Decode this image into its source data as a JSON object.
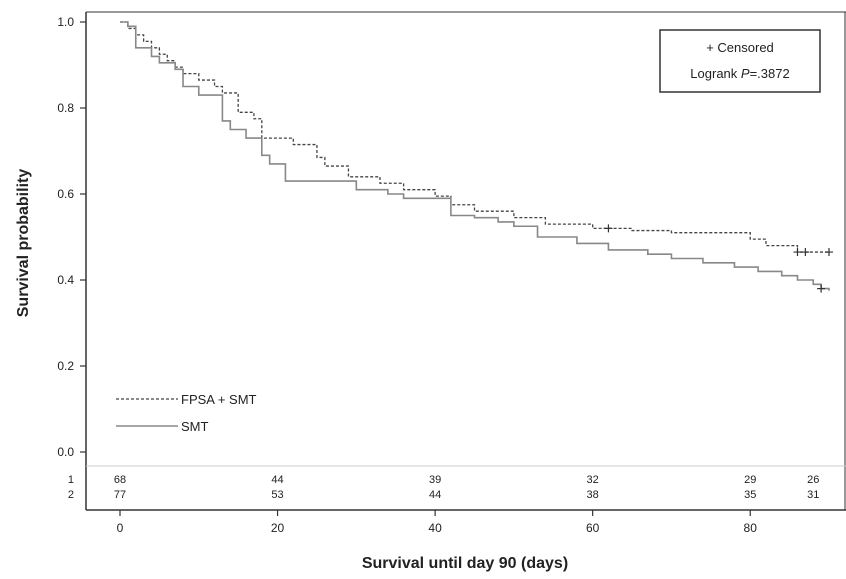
{
  "chart_data": {
    "type": "line",
    "xlabel": "Survival until day 90 (days)",
    "ylabel": "Survival probability",
    "xlim": [
      0,
      90
    ],
    "ylim": [
      0,
      1.0
    ],
    "x_ticks": [
      "0",
      "20",
      "40",
      "60",
      "80"
    ],
    "y_ticks": [
      "0.0",
      "0.2",
      "0.4",
      "0.6",
      "0.8",
      "1.0"
    ],
    "grid": false,
    "legend_position": "bottom-left",
    "annotation": {
      "censored_label": "+ Censored",
      "logrank_prefix": "Logrank ",
      "logrank_p": "P",
      "logrank_value": "=.3872"
    },
    "series": [
      {
        "name": "FPSA + SMT",
        "style": "dashed",
        "color": "#444444",
        "x": [
          0,
          1,
          2,
          3,
          4,
          5,
          6,
          7,
          8,
          10,
          12,
          13,
          15,
          17,
          18,
          22,
          25,
          26,
          29,
          33,
          36,
          40,
          42,
          45,
          50,
          54,
          60,
          65,
          70,
          80,
          82,
          86,
          90
        ],
        "y": [
          1.0,
          0.985,
          0.97,
          0.955,
          0.94,
          0.925,
          0.91,
          0.895,
          0.88,
          0.865,
          0.85,
          0.835,
          0.79,
          0.775,
          0.73,
          0.715,
          0.685,
          0.665,
          0.64,
          0.625,
          0.61,
          0.595,
          0.575,
          0.56,
          0.545,
          0.53,
          0.52,
          0.515,
          0.51,
          0.495,
          0.48,
          0.465,
          0.465
        ]
      },
      {
        "name": "SMT",
        "style": "solid",
        "color": "#888888",
        "x": [
          0,
          1,
          2,
          4,
          5,
          7,
          8,
          10,
          13,
          14,
          16,
          18,
          19,
          21,
          30,
          34,
          36,
          42,
          45,
          48,
          50,
          53,
          58,
          62,
          67,
          70,
          74,
          78,
          81,
          84,
          86,
          88,
          89,
          90
        ],
        "y": [
          1.0,
          0.99,
          0.94,
          0.92,
          0.905,
          0.89,
          0.85,
          0.83,
          0.77,
          0.75,
          0.73,
          0.69,
          0.67,
          0.63,
          0.61,
          0.6,
          0.59,
          0.55,
          0.545,
          0.535,
          0.525,
          0.5,
          0.485,
          0.47,
          0.46,
          0.45,
          0.44,
          0.43,
          0.42,
          0.41,
          0.4,
          0.39,
          0.38,
          0.375
        ]
      }
    ],
    "censored": [
      {
        "x": 62,
        "y": 0.52
      },
      {
        "x": 86,
        "y": 0.465
      },
      {
        "x": 87,
        "y": 0.465
      },
      {
        "x": 90,
        "y": 0.465
      },
      {
        "x": 89,
        "y": 0.38
      }
    ],
    "risk_table": {
      "rows": [
        {
          "label": "1",
          "values": [
            "68",
            "44",
            "39",
            "32",
            "29",
            "26"
          ]
        },
        {
          "label": "2",
          "values": [
            "77",
            "53",
            "44",
            "38",
            "35",
            "31"
          ]
        }
      ],
      "x_positions": [
        0,
        20,
        40,
        60,
        80,
        88
      ]
    }
  }
}
